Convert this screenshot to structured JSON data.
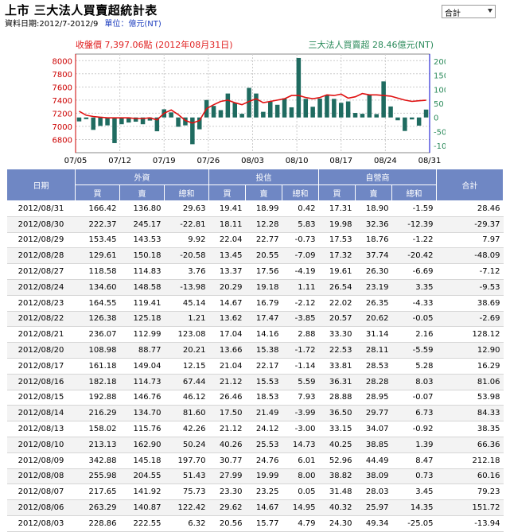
{
  "header": {
    "title": "上市 三大法人買賣超統計表",
    "date_range": "資料日期:2012/7-2012/9",
    "unit": "單位：億元(NT)"
  },
  "select": {
    "value": "合計"
  },
  "chart": {
    "left_title": "收盤價 7,397.06點 (2012年08月31日)",
    "right_title": "三大法人買賣超 28.46億元(NT)",
    "colors": {
      "left_title": "#e02020",
      "right_title": "#2a8a5a",
      "price_line": "#e01010",
      "bars": "#1f6b60",
      "axis_left": "#cc0000",
      "axis_right": "#0000cc",
      "grid": "#cccccc"
    }
  },
  "chart_data": {
    "type": "bar+line",
    "x_tick_labels": [
      "07/05",
      "07/12",
      "07/19",
      "07/26",
      "08/03",
      "08/10",
      "08/17",
      "08/24",
      "08/31"
    ],
    "left_axis": {
      "ticks": [
        6800,
        7000,
        7200,
        7400,
        7600,
        7800,
        8000
      ],
      "ylim": [
        6600,
        8100
      ]
    },
    "right_axis": {
      "ticks": [
        -100,
        -50,
        0,
        50,
        100,
        150,
        200
      ],
      "ylim": [
        -125,
        225
      ]
    },
    "series": [
      {
        "values": [
          -14,
          -6,
          -44,
          -30,
          -28,
          -91,
          -24,
          -18,
          -15,
          -24,
          -11,
          -49,
          29,
          18,
          -33,
          -28,
          -95,
          -42,
          62,
          41,
          26,
          85,
          52,
          13,
          105,
          85,
          20,
          56,
          45,
          68,
          36,
          211,
          66,
          38,
          67,
          79,
          66,
          52,
          57,
          16,
          13,
          81,
          12,
          128,
          39,
          -10,
          -48,
          -7,
          -29,
          28
        ]
      },
      {
        "values": [
          7230,
          7170,
          7150,
          7140,
          7130,
          7130,
          7130,
          7130,
          7120,
          7120,
          7130,
          7100,
          7200,
          7250,
          7180,
          7090,
          7050,
          7090,
          7270,
          7330,
          7380,
          7400,
          7360,
          7330,
          7380,
          7420,
          7360,
          7380,
          7400,
          7420,
          7470,
          7470,
          7440,
          7420,
          7440,
          7480,
          7470,
          7490,
          7430,
          7450,
          7500,
          7480,
          7480,
          7470,
          7460,
          7430,
          7400,
          7380,
          7390,
          7397
        ]
      }
    ]
  },
  "table": {
    "headers": {
      "date": "日期",
      "foreign": "外資",
      "trust": "投信",
      "dealer": "自營商",
      "total": "合計",
      "buy": "買",
      "sell": "賣",
      "net": "總和"
    },
    "rows": [
      [
        "2012/08/31",
        "166.42",
        "136.80",
        "29.63",
        "19.41",
        "18.99",
        "0.42",
        "17.31",
        "18.90",
        "-1.59",
        "28.46"
      ],
      [
        "2012/08/30",
        "222.37",
        "245.17",
        "-22.81",
        "18.11",
        "12.28",
        "5.83",
        "19.98",
        "32.36",
        "-12.39",
        "-29.37"
      ],
      [
        "2012/08/29",
        "153.45",
        "143.53",
        "9.92",
        "22.04",
        "22.77",
        "-0.73",
        "17.53",
        "18.76",
        "-1.22",
        "7.97"
      ],
      [
        "2012/08/28",
        "129.61",
        "150.18",
        "-20.58",
        "13.45",
        "20.55",
        "-7.09",
        "17.32",
        "37.74",
        "-20.42",
        "-48.09"
      ],
      [
        "2012/08/27",
        "118.58",
        "114.83",
        "3.76",
        "13.37",
        "17.56",
        "-4.19",
        "19.61",
        "26.30",
        "-6.69",
        "-7.12"
      ],
      [
        "2012/08/24",
        "134.60",
        "148.58",
        "-13.98",
        "20.29",
        "19.18",
        "1.11",
        "26.54",
        "23.19",
        "3.35",
        "-9.53"
      ],
      [
        "2012/08/23",
        "164.55",
        "119.41",
        "45.14",
        "14.67",
        "16.79",
        "-2.12",
        "22.02",
        "26.35",
        "-4.33",
        "38.69"
      ],
      [
        "2012/08/22",
        "126.38",
        "125.18",
        "1.21",
        "13.62",
        "17.47",
        "-3.85",
        "20.57",
        "20.62",
        "-0.05",
        "-2.69"
      ],
      [
        "2012/08/21",
        "236.07",
        "112.99",
        "123.08",
        "17.04",
        "14.16",
        "2.88",
        "33.30",
        "31.14",
        "2.16",
        "128.12"
      ],
      [
        "2012/08/20",
        "108.98",
        "88.77",
        "20.21",
        "13.66",
        "15.38",
        "-1.72",
        "22.53",
        "28.11",
        "-5.59",
        "12.90"
      ],
      [
        "2012/08/17",
        "161.18",
        "149.04",
        "12.15",
        "21.04",
        "22.17",
        "-1.14",
        "33.81",
        "28.53",
        "5.28",
        "16.29"
      ],
      [
        "2012/08/16",
        "182.18",
        "114.73",
        "67.44",
        "21.12",
        "15.53",
        "5.59",
        "36.31",
        "28.28",
        "8.03",
        "81.06"
      ],
      [
        "2012/08/15",
        "192.88",
        "146.76",
        "46.12",
        "26.46",
        "18.53",
        "7.93",
        "28.88",
        "28.95",
        "-0.07",
        "53.98"
      ],
      [
        "2012/08/14",
        "216.29",
        "134.70",
        "81.60",
        "17.50",
        "21.49",
        "-3.99",
        "36.50",
        "29.77",
        "6.73",
        "84.33"
      ],
      [
        "2012/08/13",
        "158.02",
        "115.76",
        "42.26",
        "21.12",
        "24.12",
        "-3.00",
        "33.15",
        "34.07",
        "-0.92",
        "38.35"
      ],
      [
        "2012/08/10",
        "213.13",
        "162.90",
        "50.24",
        "40.26",
        "25.53",
        "14.73",
        "40.25",
        "38.85",
        "1.39",
        "66.36"
      ],
      [
        "2012/08/09",
        "342.88",
        "145.18",
        "197.70",
        "30.77",
        "24.76",
        "6.01",
        "52.96",
        "44.49",
        "8.47",
        "212.18"
      ],
      [
        "2012/08/08",
        "255.98",
        "204.55",
        "51.43",
        "27.99",
        "19.99",
        "8.00",
        "38.82",
        "38.09",
        "0.73",
        "60.16"
      ],
      [
        "2012/08/07",
        "217.65",
        "141.92",
        "75.73",
        "23.30",
        "23.25",
        "0.05",
        "31.48",
        "28.03",
        "3.45",
        "79.23"
      ],
      [
        "2012/08/06",
        "263.29",
        "140.87",
        "122.42",
        "29.62",
        "14.67",
        "14.95",
        "40.32",
        "25.97",
        "14.35",
        "151.72"
      ],
      [
        "2012/08/03",
        "228.86",
        "222.55",
        "6.32",
        "20.56",
        "15.77",
        "4.79",
        "24.30",
        "49.34",
        "-25.05",
        "-13.94"
      ]
    ]
  }
}
